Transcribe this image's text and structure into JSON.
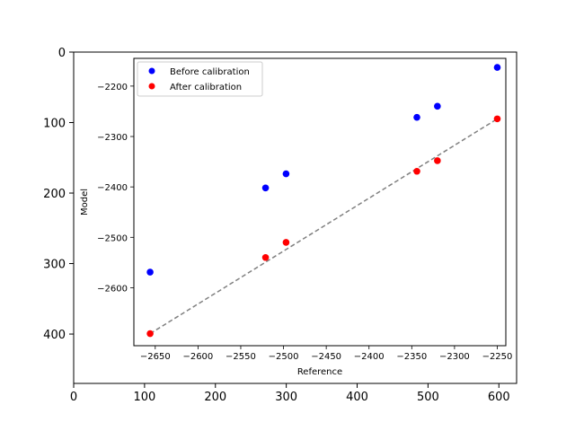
{
  "chart_data": [
    {
      "type": "axes",
      "role": "outer",
      "xlim": [
        0,
        625
      ],
      "ylim": [
        0,
        470
      ],
      "y_inverted": true,
      "x_ticks": [
        0,
        100,
        200,
        300,
        400,
        500,
        600
      ],
      "y_ticks": [
        0,
        100,
        200,
        300,
        400
      ],
      "x_tick_labels": [
        "0",
        "100",
        "200",
        "300",
        "400",
        "500",
        "600"
      ],
      "y_tick_labels": [
        "0",
        "100",
        "200",
        "300",
        "400"
      ]
    },
    {
      "type": "scatter",
      "role": "inner",
      "xlabel": "Reference",
      "ylabel": "Model",
      "xlim": [
        -2675,
        -2240
      ],
      "ylim": [
        -2715,
        -2145
      ],
      "x_ticks": [
        -2650,
        -2600,
        -2550,
        -2500,
        -2450,
        -2400,
        -2350,
        -2300,
        -2250
      ],
      "y_ticks": [
        -2600,
        -2500,
        -2400,
        -2300,
        -2200
      ],
      "x_tick_labels": [
        "−2650",
        "−2600",
        "−2550",
        "−2500",
        "−2450",
        "−2400",
        "−2350",
        "−2300",
        "−2250"
      ],
      "y_tick_labels": [
        "−2600",
        "−2500",
        "−2400",
        "−2300",
        "−2200"
      ],
      "grid": false,
      "legend_position": "upper-left",
      "series": [
        {
          "name": "Before calibration",
          "color": "#0000ff",
          "points": [
            {
              "x": -2656,
              "y": -2569
            },
            {
              "x": -2521,
              "y": -2402
            },
            {
              "x": -2497,
              "y": -2374
            },
            {
              "x": -2344,
              "y": -2262
            },
            {
              "x": -2320,
              "y": -2240
            },
            {
              "x": -2250,
              "y": -2163
            }
          ]
        },
        {
          "name": "After calibration",
          "color": "#ff0000",
          "points": [
            {
              "x": -2656,
              "y": -2691
            },
            {
              "x": -2521,
              "y": -2540
            },
            {
              "x": -2497,
              "y": -2510
            },
            {
              "x": -2344,
              "y": -2369
            },
            {
              "x": -2320,
              "y": -2348
            },
            {
              "x": -2250,
              "y": -2265
            }
          ]
        }
      ],
      "reference_line": {
        "style": "dashed",
        "color": "#808080",
        "from": {
          "x": -2656,
          "y": -2691
        },
        "to": {
          "x": -2250,
          "y": -2265
        }
      }
    }
  ]
}
